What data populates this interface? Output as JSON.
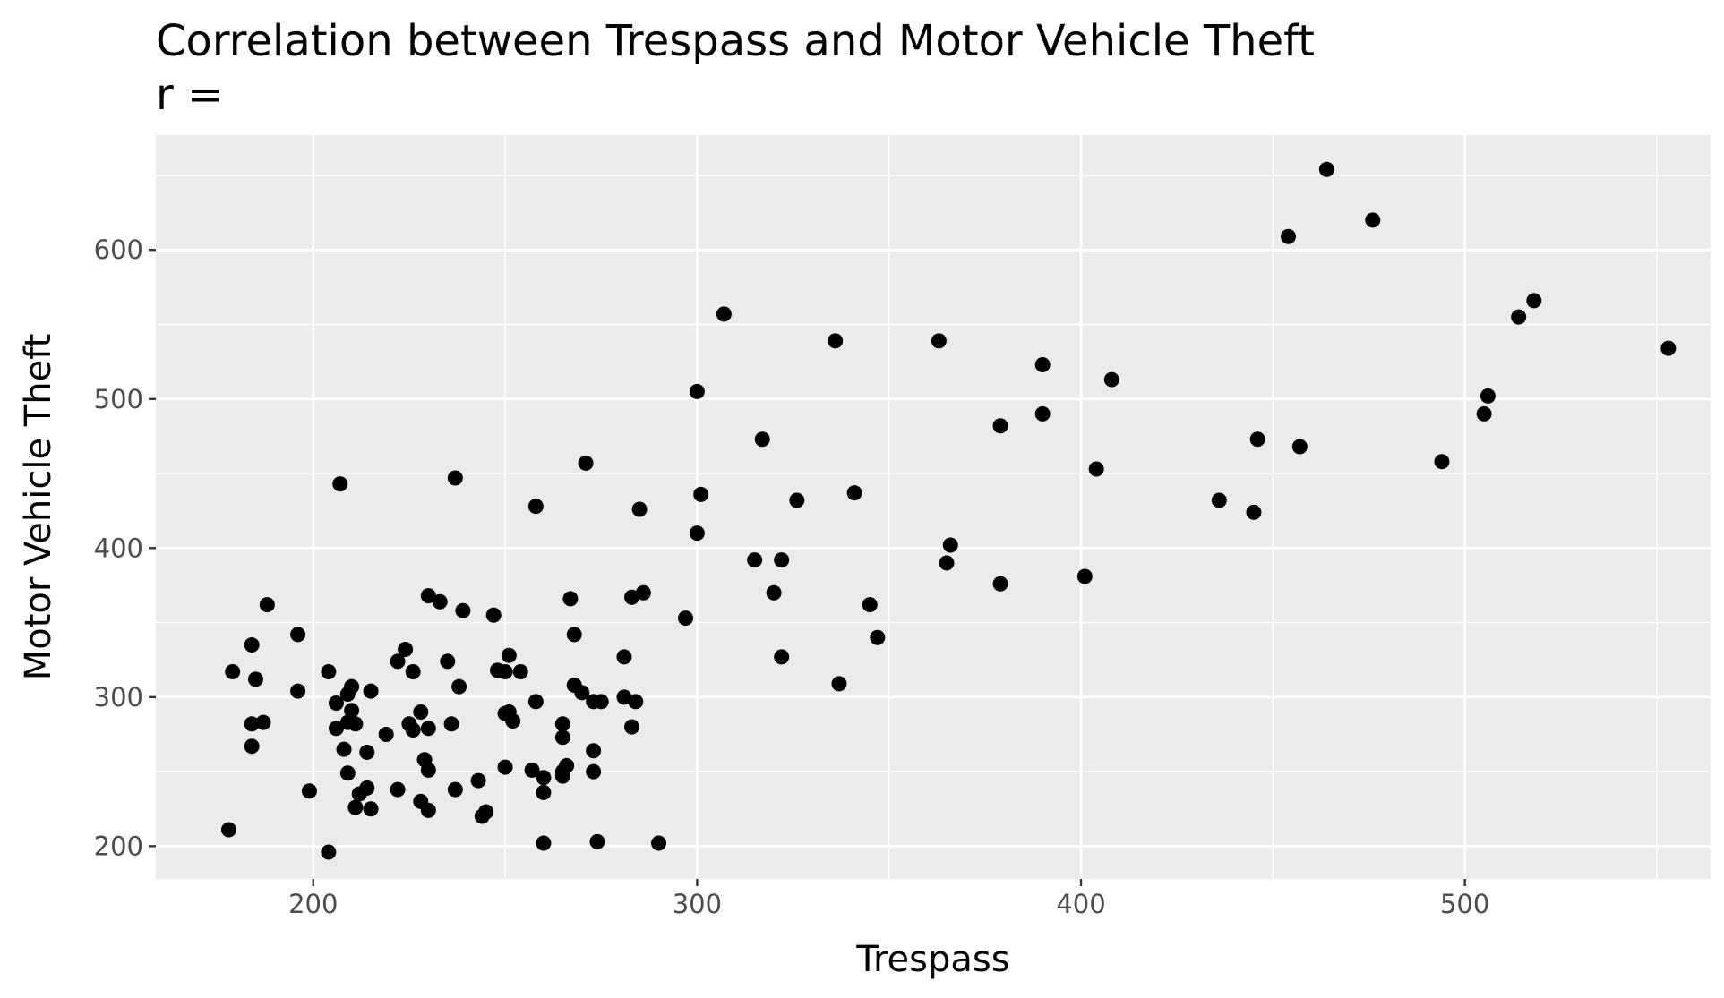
{
  "chart_data": {
    "type": "scatter",
    "title": "Correlation between Trespass and Motor Vehicle Theft",
    "subtitle": "r =",
    "xlabel": "Trespass",
    "ylabel": "Motor Vehicle Theft",
    "xlim": [
      159,
      564
    ],
    "ylim": [
      178,
      677
    ],
    "x_ticks": [
      200,
      300,
      400,
      500
    ],
    "y_ticks": [
      200,
      300,
      400,
      500,
      600
    ],
    "grid": true,
    "legend": "none",
    "colors": {
      "panel": "#EBEBEB",
      "grid": "#FFFFFF",
      "point": "#000000"
    },
    "points": [
      [
        464,
        654
      ],
      [
        476,
        620
      ],
      [
        454,
        609
      ],
      [
        518,
        566
      ],
      [
        514,
        555
      ],
      [
        553,
        534
      ],
      [
        506,
        502
      ],
      [
        505,
        490
      ],
      [
        494,
        458
      ],
      [
        457,
        468
      ],
      [
        446,
        473
      ],
      [
        445,
        424
      ],
      [
        436,
        432
      ],
      [
        408,
        513
      ],
      [
        404,
        453
      ],
      [
        401,
        381
      ],
      [
        390,
        523
      ],
      [
        390,
        490
      ],
      [
        379,
        482
      ],
      [
        379,
        376
      ],
      [
        366,
        402
      ],
      [
        365,
        390
      ],
      [
        363,
        539
      ],
      [
        347,
        340
      ],
      [
        345,
        362
      ],
      [
        341,
        437
      ],
      [
        337,
        309
      ],
      [
        336,
        539
      ],
      [
        326,
        432
      ],
      [
        322,
        392
      ],
      [
        322,
        327
      ],
      [
        320,
        370
      ],
      [
        317,
        473
      ],
      [
        315,
        392
      ],
      [
        307,
        557
      ],
      [
        301,
        436
      ],
      [
        300,
        505
      ],
      [
        300,
        410
      ],
      [
        297,
        353
      ],
      [
        290,
        202
      ],
      [
        286,
        370
      ],
      [
        285,
        426
      ],
      [
        284,
        297
      ],
      [
        283,
        367
      ],
      [
        283,
        280
      ],
      [
        281,
        327
      ],
      [
        281,
        300
      ],
      [
        275,
        297
      ],
      [
        274,
        203
      ],
      [
        273,
        264
      ],
      [
        273,
        250
      ],
      [
        273,
        297
      ],
      [
        271,
        457
      ],
      [
        270,
        303
      ],
      [
        268,
        342
      ],
      [
        268,
        308
      ],
      [
        267,
        366
      ],
      [
        266,
        254
      ],
      [
        265,
        282
      ],
      [
        265,
        273
      ],
      [
        265,
        247
      ],
      [
        265,
        250
      ],
      [
        260,
        246
      ],
      [
        260,
        236
      ],
      [
        260,
        202
      ],
      [
        258,
        297
      ],
      [
        258,
        428
      ],
      [
        257,
        251
      ],
      [
        254,
        317
      ],
      [
        252,
        284
      ],
      [
        251,
        328
      ],
      [
        251,
        290
      ],
      [
        250,
        253
      ],
      [
        250,
        317
      ],
      [
        250,
        289
      ],
      [
        248,
        318
      ],
      [
        247,
        355
      ],
      [
        245,
        223
      ],
      [
        244,
        220
      ],
      [
        243,
        244
      ],
      [
        238,
        307
      ],
      [
        237,
        447
      ],
      [
        237,
        238
      ],
      [
        236,
        282
      ],
      [
        235,
        324
      ],
      [
        239,
        358
      ],
      [
        233,
        364
      ],
      [
        230,
        368
      ],
      [
        230,
        279
      ],
      [
        230,
        251
      ],
      [
        230,
        224
      ],
      [
        229,
        258
      ],
      [
        228,
        290
      ],
      [
        228,
        230
      ],
      [
        226,
        278
      ],
      [
        226,
        317
      ],
      [
        225,
        282
      ],
      [
        224,
        332
      ],
      [
        222,
        324
      ],
      [
        222,
        238
      ],
      [
        219,
        275
      ],
      [
        215,
        304
      ],
      [
        215,
        225
      ],
      [
        214,
        239
      ],
      [
        214,
        263
      ],
      [
        212,
        235
      ],
      [
        211,
        226
      ],
      [
        211,
        282
      ],
      [
        210,
        307
      ],
      [
        210,
        291
      ],
      [
        209,
        302
      ],
      [
        209,
        249
      ],
      [
        209,
        283
      ],
      [
        208,
        265
      ],
      [
        207,
        443
      ],
      [
        206,
        296
      ],
      [
        206,
        279
      ],
      [
        204,
        317
      ],
      [
        204,
        196
      ],
      [
        199,
        237
      ],
      [
        196,
        342
      ],
      [
        196,
        304
      ],
      [
        188,
        362
      ],
      [
        187,
        283
      ],
      [
        185,
        312
      ],
      [
        184,
        335
      ],
      [
        184,
        282
      ],
      [
        184,
        267
      ],
      [
        179,
        317
      ],
      [
        178,
        211
      ]
    ]
  }
}
